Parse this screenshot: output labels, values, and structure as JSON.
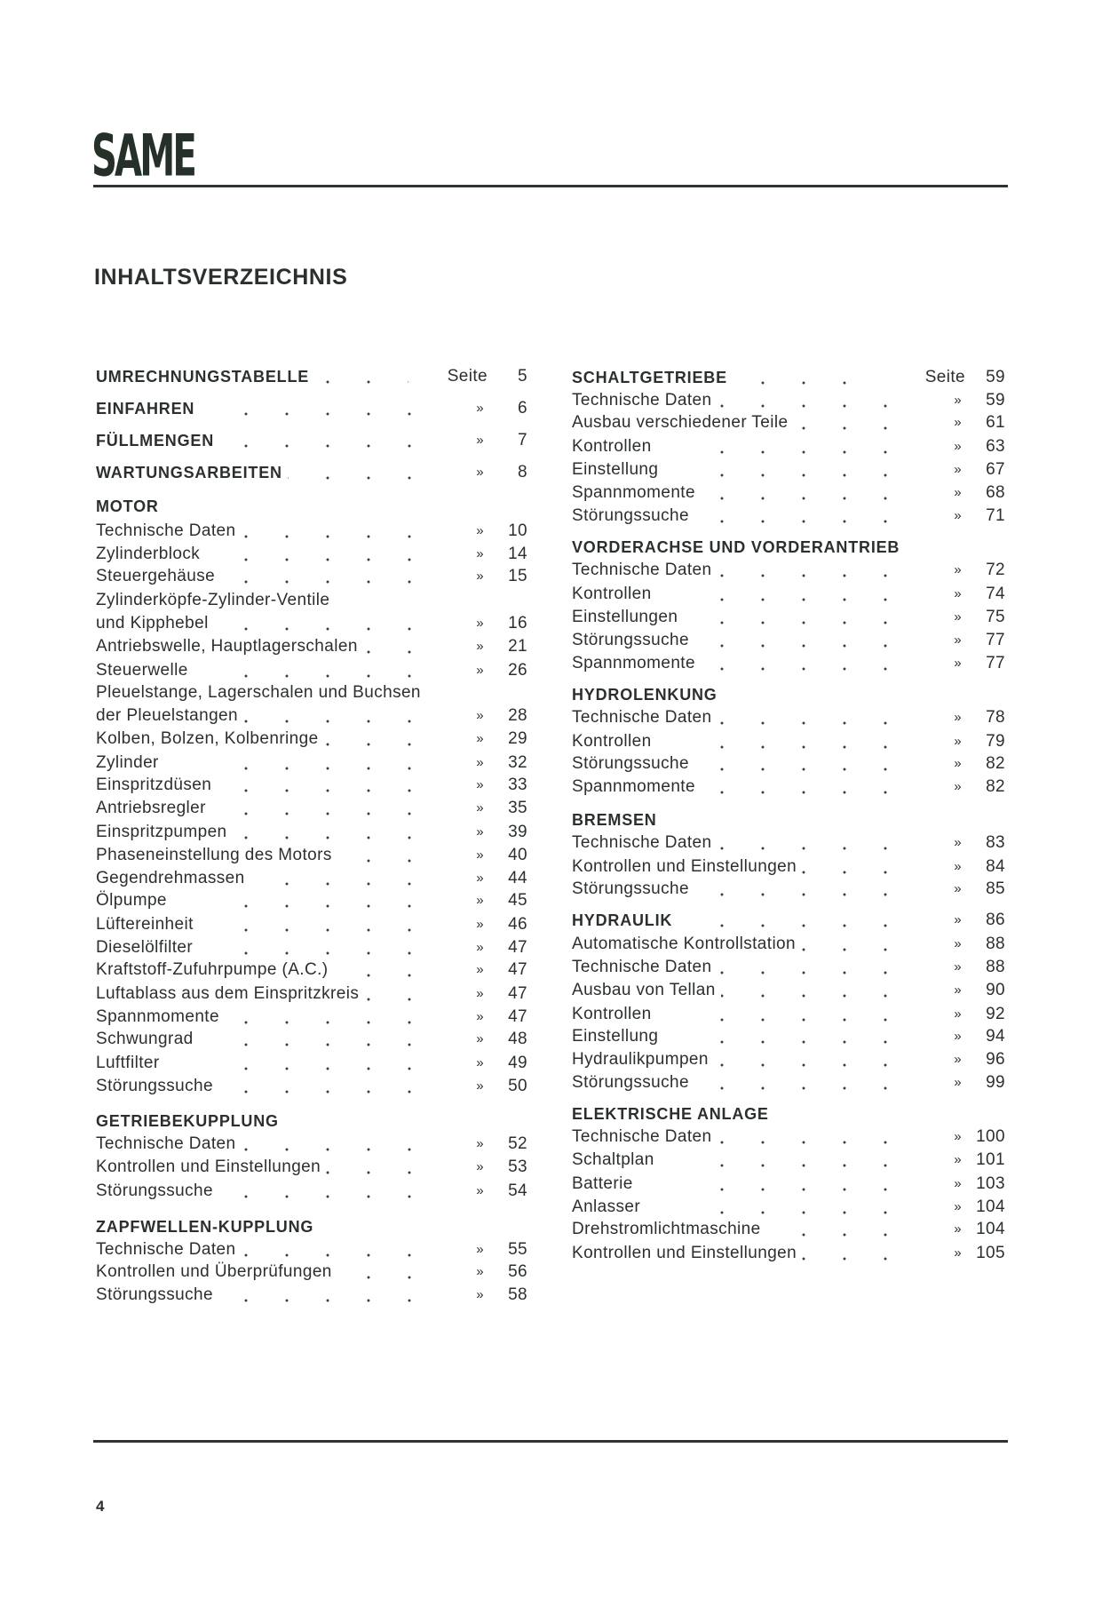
{
  "logo": "SAME",
  "title": "INHALTSVERZEICHNIS",
  "page_number": "4",
  "columns": [
    [
      {
        "text": "UMRECHNUNGSTABELLE",
        "head": true,
        "marker": "Seite",
        "page": "5"
      },
      {
        "text": "EINFAHREN",
        "head": true,
        "marker": "»",
        "page": "6"
      },
      {
        "text": "FÜLLMENGEN",
        "head": true,
        "marker": "»",
        "page": "7"
      },
      {
        "text": "WARTUNGSARBEITEN",
        "head": true,
        "marker": "»",
        "page": "8"
      },
      {
        "text": "MOTOR",
        "head": true
      },
      {
        "text": "Technische Daten",
        "marker": "»",
        "page": "10"
      },
      {
        "text": "Zylinderblock",
        "marker": "»",
        "page": "14"
      },
      {
        "text": "Steuergehäuse",
        "marker": "»",
        "page": "15"
      },
      {
        "text": "Zylinderköpfe-Zylinder-Ventile"
      },
      {
        "text": "und Kipphebel",
        "marker": "»",
        "page": "16"
      },
      {
        "text": "Antriebswelle, Hauptlagerschalen",
        "marker": "»",
        "page": "21"
      },
      {
        "text": "Steuerwelle",
        "marker": "»",
        "page": "26"
      },
      {
        "text": "Pleuelstange, Lagerschalen und Buchsen"
      },
      {
        "text": "der Pleuelstangen",
        "marker": "»",
        "page": "28"
      },
      {
        "text": "Kolben, Bolzen, Kolbenringe",
        "marker": "»",
        "page": "29"
      },
      {
        "text": "Zylinder",
        "marker": "»",
        "page": "32"
      },
      {
        "text": "Einspritzdüsen",
        "marker": "»",
        "page": "33"
      },
      {
        "text": "Antriebsregler",
        "marker": "»",
        "page": "35"
      },
      {
        "text": "Einspritzpumpen",
        "marker": "»",
        "page": "39"
      },
      {
        "text": "Phaseneinstellung des Motors",
        "marker": "»",
        "page": "40"
      },
      {
        "text": "Gegendrehmassen",
        "marker": "»",
        "page": "44"
      },
      {
        "text": "Ölpumpe",
        "marker": "»",
        "page": "45"
      },
      {
        "text": "Lüftereinheit",
        "marker": "»",
        "page": "46"
      },
      {
        "text": "Dieselölfilter",
        "marker": "»",
        "page": "47"
      },
      {
        "text": "Kraftstoff-Zufuhrpumpe (A.C.)",
        "marker": "»",
        "page": "47"
      },
      {
        "text": "Luftablass aus dem Einspritzkreis",
        "marker": "»",
        "page": "47"
      },
      {
        "text": "Spannmomente",
        "marker": "»",
        "page": "47"
      },
      {
        "text": "Schwungrad",
        "marker": "»",
        "page": "48"
      },
      {
        "text": "Luftfilter",
        "marker": "»",
        "page": "49"
      },
      {
        "text": "Störungssuche",
        "marker": "»",
        "page": "50"
      },
      {
        "text": "GETRIEBEKUPPLUNG",
        "head": true
      },
      {
        "text": "Technische Daten",
        "marker": "»",
        "page": "52"
      },
      {
        "text": "Kontrollen und Einstellungen",
        "marker": "»",
        "page": "53"
      },
      {
        "text": "Störungssuche",
        "marker": "»",
        "page": "54"
      },
      {
        "text": "ZAPFWELLEN-KUPPLUNG",
        "head": true
      },
      {
        "text": "Technische Daten",
        "marker": "»",
        "page": "55"
      },
      {
        "text": "Kontrollen und Überprüfungen",
        "marker": "»",
        "page": "56"
      },
      {
        "text": "Störungssuche",
        "marker": "»",
        "page": "58"
      }
    ],
    [
      {
        "text": "SCHALTGETRIEBE",
        "head": true,
        "marker": "Seite",
        "page": "59"
      },
      {
        "text": "Technische Daten",
        "marker": "»",
        "page": "59"
      },
      {
        "text": "Ausbau verschiedener Teile",
        "marker": "»",
        "page": "61"
      },
      {
        "text": "Kontrollen",
        "marker": "»",
        "page": "63"
      },
      {
        "text": "Einstellung",
        "marker": "»",
        "page": "67"
      },
      {
        "text": "Spannmomente",
        "marker": "»",
        "page": "68"
      },
      {
        "text": "Störungssuche",
        "marker": "»",
        "page": "71"
      },
      {
        "text": "VORDERACHSE UND VORDERANTRIEB",
        "head": true
      },
      {
        "text": "Technische Daten",
        "marker": "»",
        "page": "72"
      },
      {
        "text": "Kontrollen",
        "marker": "»",
        "page": "74"
      },
      {
        "text": "Einstellungen",
        "marker": "»",
        "page": "75"
      },
      {
        "text": "Störungssuche",
        "marker": "»",
        "page": "77"
      },
      {
        "text": "Spannmomente",
        "marker": "»",
        "page": "77"
      },
      {
        "text": "HYDROLENKUNG",
        "head": true
      },
      {
        "text": "Technische Daten",
        "marker": "»",
        "page": "78"
      },
      {
        "text": "Kontrollen",
        "marker": "»",
        "page": "79"
      },
      {
        "text": "Störungssuche",
        "marker": "»",
        "page": "82"
      },
      {
        "text": "Spannmomente",
        "marker": "»",
        "page": "82"
      },
      {
        "text": "BREMSEN",
        "head": true
      },
      {
        "text": "Technische Daten",
        "marker": "»",
        "page": "83"
      },
      {
        "text": "Kontrollen und Einstellungen",
        "marker": "»",
        "page": "84"
      },
      {
        "text": "Störungssuche",
        "marker": "»",
        "page": "85"
      },
      {
        "text": "HYDRAULIK",
        "head": true,
        "marker": "»",
        "page": "86"
      },
      {
        "text": "Automatische Kontrollstation",
        "marker": "»",
        "page": "88"
      },
      {
        "text": "Technische Daten",
        "marker": "»",
        "page": "88"
      },
      {
        "text": "Ausbau von Tellan",
        "marker": "»",
        "page": "90"
      },
      {
        "text": "Kontrollen",
        "marker": "»",
        "page": "92"
      },
      {
        "text": "Einstellung",
        "marker": "»",
        "page": "94"
      },
      {
        "text": "Hydraulikpumpen",
        "marker": "»",
        "page": "96"
      },
      {
        "text": "Störungssuche",
        "marker": "»",
        "page": "99"
      },
      {
        "text": "ELEKTRISCHE ANLAGE",
        "head": true
      },
      {
        "text": "Technische Daten",
        "marker": "»",
        "page": "100"
      },
      {
        "text": "Schaltplan",
        "marker": "»",
        "page": "101"
      },
      {
        "text": "Batterie",
        "marker": "»",
        "page": "103"
      },
      {
        "text": "Anlasser",
        "marker": "»",
        "page": "104"
      },
      {
        "text": "Drehstromlichtmaschine",
        "marker": "»",
        "page": "104"
      },
      {
        "text": "Kontrollen und Einstellungen",
        "marker": "»",
        "page": "105"
      }
    ]
  ]
}
